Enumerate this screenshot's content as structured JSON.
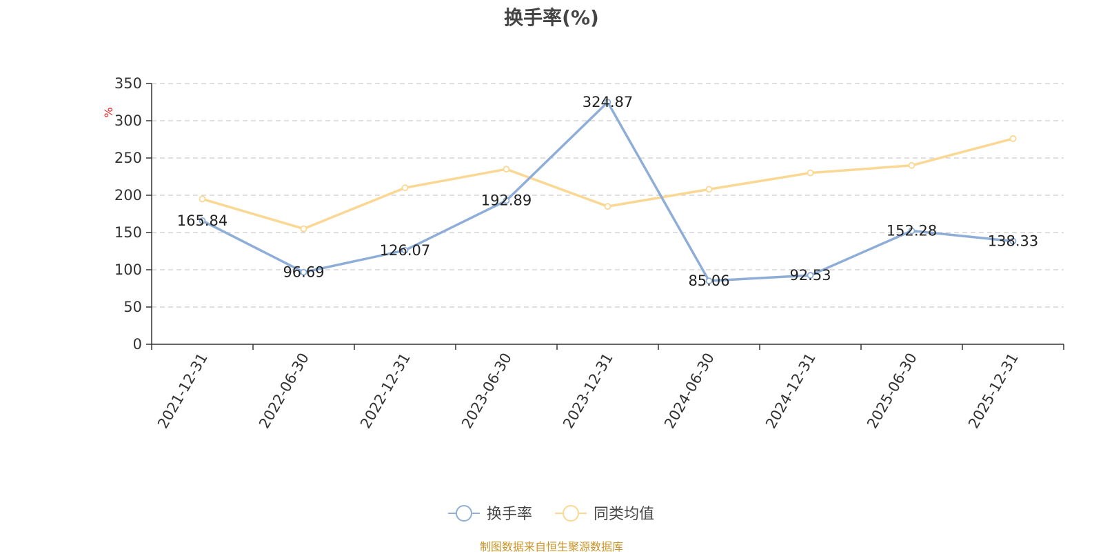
{
  "page": {
    "title": "换手率(%)",
    "source": "制图数据来自恒生聚源数据库"
  },
  "chart_data": {
    "type": "line",
    "title": "换手率(%)",
    "ylabel": "%",
    "ylim": [
      0,
      350
    ],
    "yticks": [
      0,
      50,
      100,
      150,
      200,
      250,
      300,
      350
    ],
    "grid": "horizontal dashed",
    "legend_position": "bottom-center",
    "categories": [
      "2021-12-31",
      "2022-06-30",
      "2022-12-31",
      "2023-06-30",
      "2023-12-31",
      "2024-06-30",
      "2024-12-31",
      "2025-06-30",
      "2025-12-31"
    ],
    "series": [
      {
        "name": "换手率",
        "color": "#8eaed8",
        "values": [
          165.84,
          96.69,
          126.07,
          192.89,
          324.87,
          85.06,
          92.53,
          152.28,
          138.33
        ],
        "labels": [
          "165.84",
          "96.69",
          "126.07",
          "192.89",
          "324.87",
          "85.06",
          "92.53",
          "152.28",
          "138.33"
        ]
      },
      {
        "name": "同类均值",
        "color": "#fad893",
        "values": [
          195,
          155,
          210,
          235,
          185,
          208,
          230,
          240,
          276
        ]
      }
    ],
    "unit_color": "#ee2222"
  }
}
